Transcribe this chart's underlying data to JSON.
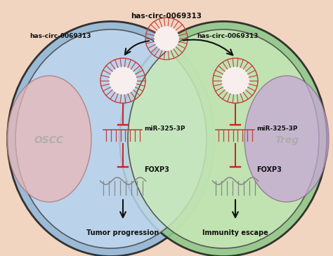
{
  "bg_color": "#f2d5c0",
  "left_cell_outer_color": "#92b8d8",
  "left_cell_inner_color": "#c0d8f0",
  "right_cell_outer_color": "#8fc88a",
  "right_cell_inner_color": "#c8e8b8",
  "left_nucleus_color": "#e8b8b8",
  "right_nucleus_color": "#c8a8d8",
  "red_color": "#cc2222",
  "black_color": "#111111",
  "gray_color": "#888888",
  "label_oscc": "OSCC",
  "label_treg": "Treg",
  "label_circ_top": "has-circ-0069313",
  "label_circ_left": "has-circ-0069313",
  "label_circ_right": "has-circ-0069313",
  "label_mir": "miR-325-3P",
  "label_foxp3": "FOXP3",
  "label_tumor": "Tumor progression",
  "label_immunity": "Immunity escape"
}
